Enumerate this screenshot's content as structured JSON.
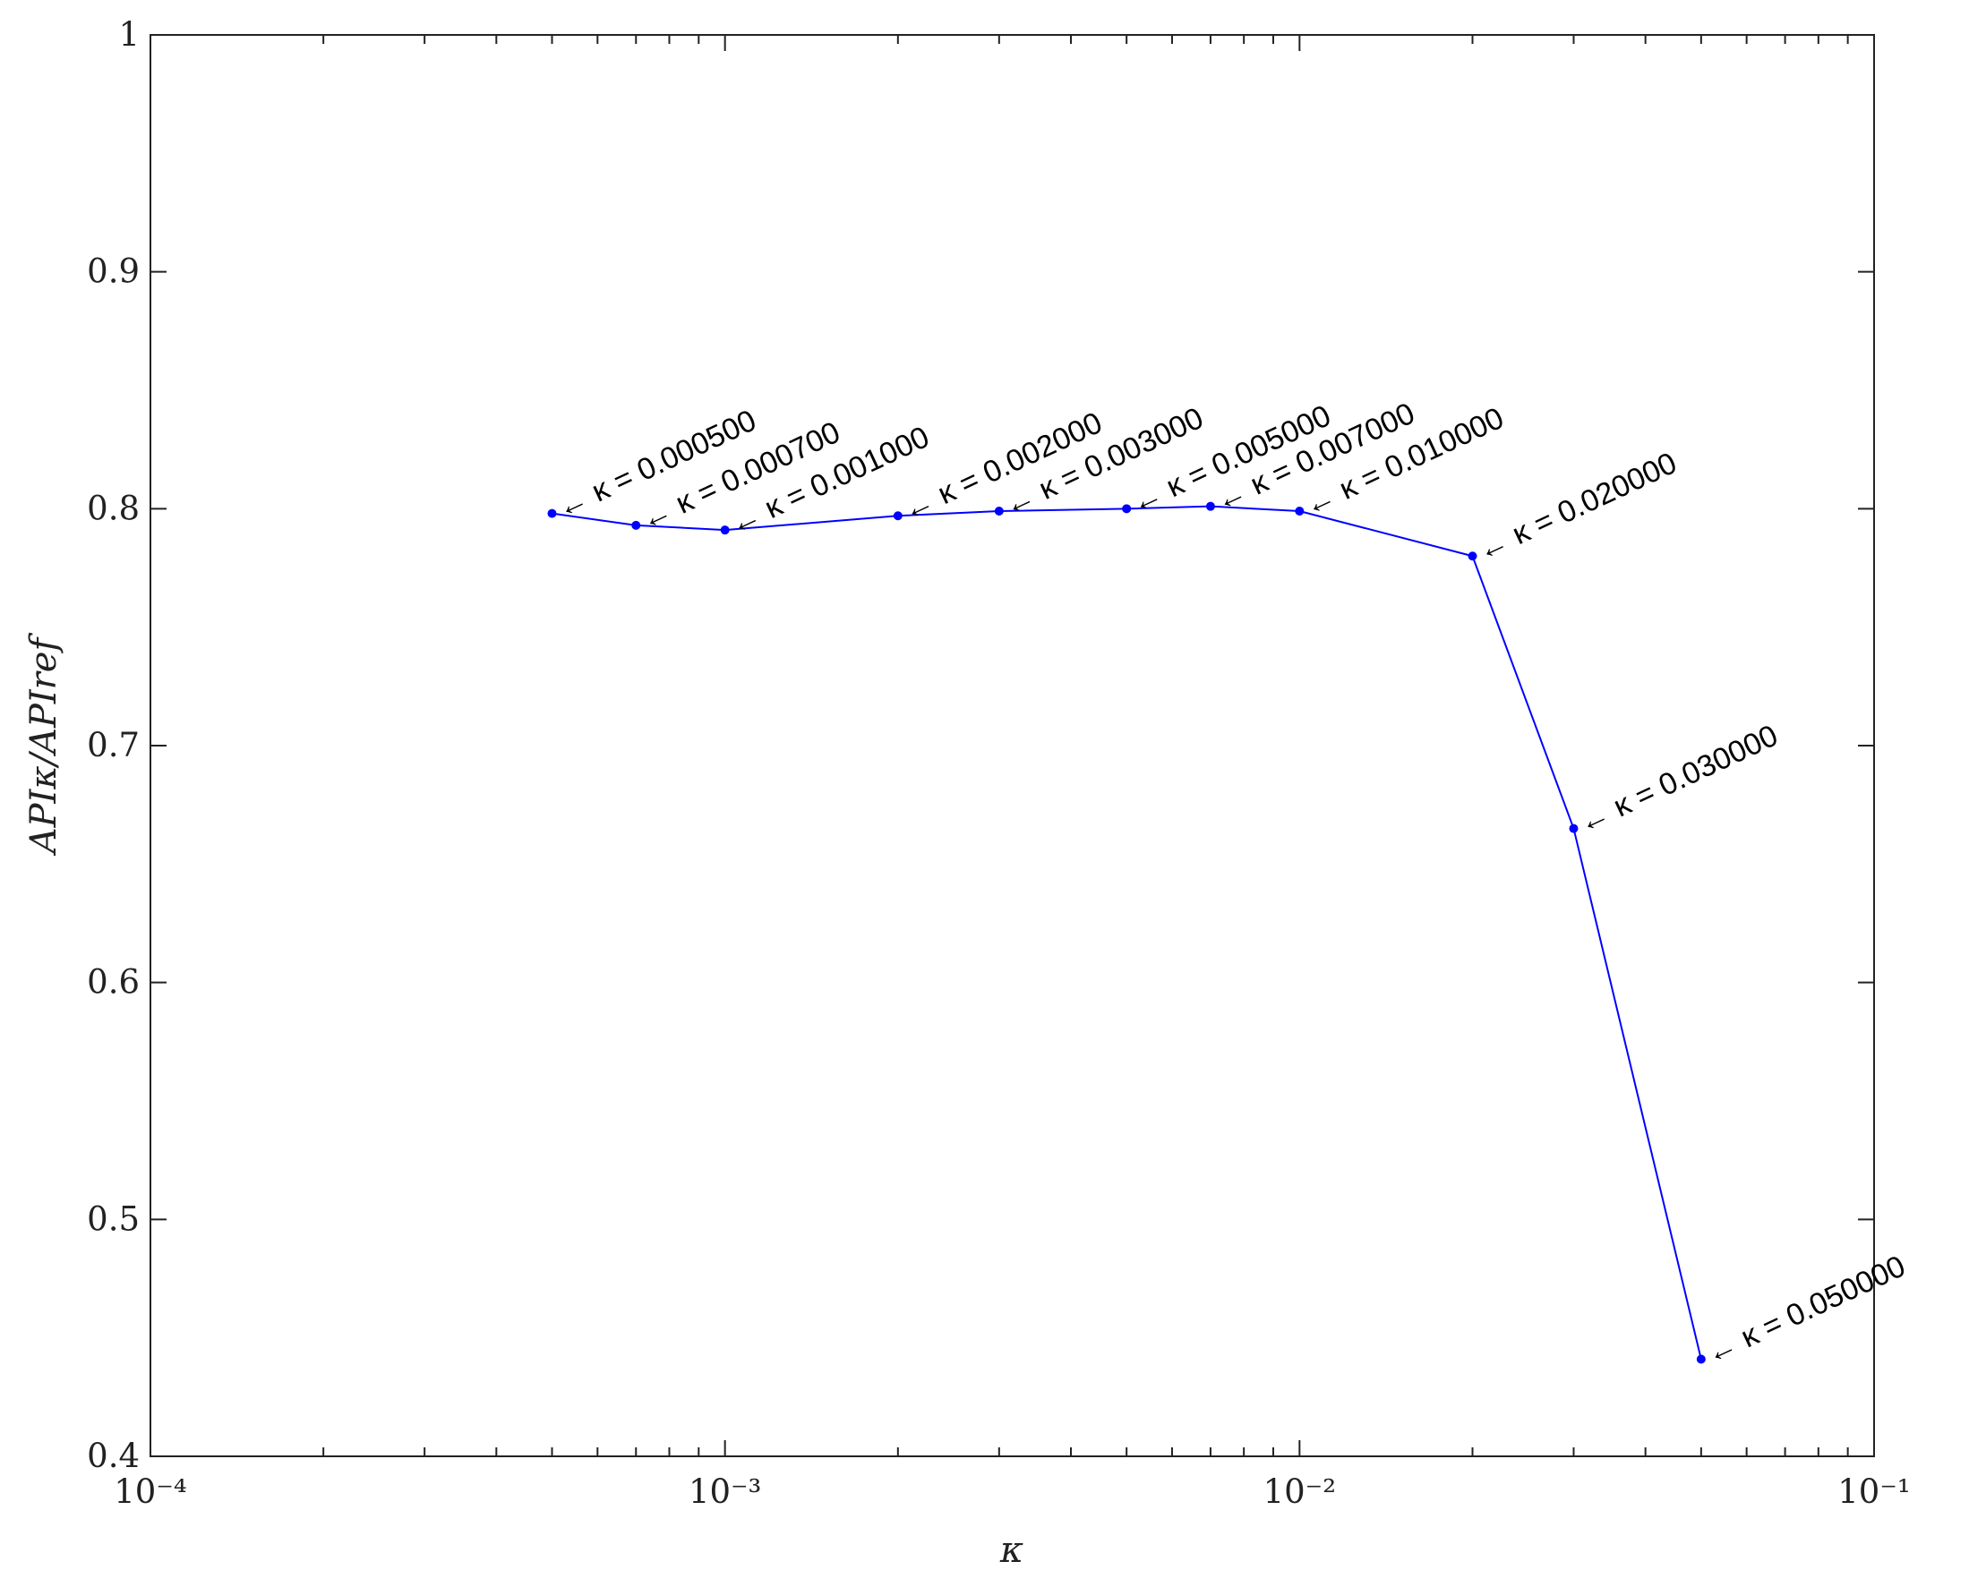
{
  "chart_data": {
    "type": "line",
    "xlabel": "κ",
    "ylabel": "APIκ/APIref",
    "x": [
      0.0005,
      0.0007,
      0.001,
      0.002,
      0.003,
      0.005,
      0.007,
      0.01,
      0.02,
      0.03,
      0.05
    ],
    "series": [
      {
        "color": "#0000ff",
        "values": [
          0.798,
          0.793,
          0.791,
          0.797,
          0.799,
          0.8,
          0.801,
          0.799,
          0.78,
          0.665,
          0.441
        ]
      }
    ],
    "annotations": [
      "←  κ = 0.000500",
      "←  κ = 0.000700",
      "←  κ = 0.001000",
      "←  κ = 0.002000",
      "←  κ = 0.003000",
      "←  κ = 0.005000",
      "←  κ = 0.007000",
      "←  κ = 0.010000",
      "←  κ = 0.020000",
      "←  κ = 0.030000",
      "←  κ = 0.050000"
    ],
    "xscale": "log",
    "xlim": [
      0.0001,
      0.1
    ],
    "xticks": [
      {
        "value": 0.0001,
        "label": "10⁻⁴"
      },
      {
        "value": 0.001,
        "label": "10⁻³"
      },
      {
        "value": 0.01,
        "label": "10⁻²"
      },
      {
        "value": 0.1,
        "label": "10⁻¹"
      }
    ],
    "xminorticks": [
      0.0002,
      0.0003,
      0.0004,
      0.0005,
      0.0006,
      0.0007,
      0.0008,
      0.0009,
      0.002,
      0.003,
      0.004,
      0.005,
      0.006,
      0.007,
      0.008,
      0.009,
      0.02,
      0.03,
      0.04,
      0.05,
      0.06,
      0.07,
      0.08,
      0.09
    ],
    "ylim": [
      0.4,
      1
    ],
    "yticks": [
      0.4,
      0.5,
      0.6,
      0.7,
      0.8,
      0.9,
      1
    ]
  }
}
